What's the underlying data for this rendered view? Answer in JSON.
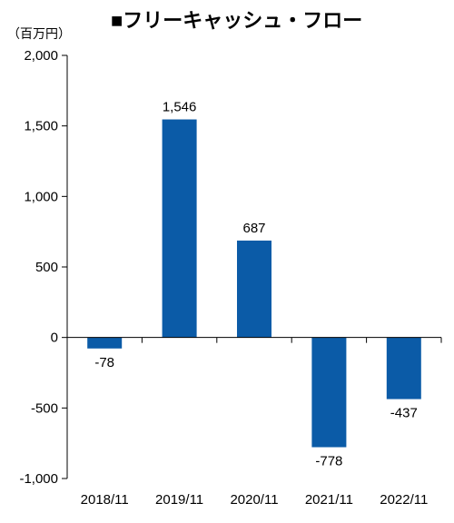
{
  "chart_data": {
    "type": "bar",
    "title": "■フリーキャッシュ・フロー",
    "unit_label": "（百万円）",
    "categories": [
      "2018/11",
      "2019/11",
      "2020/11",
      "2021/11",
      "2022/11"
    ],
    "values": [
      -78,
      1546,
      687,
      -778,
      -437
    ],
    "data_labels": [
      "-78",
      "1,546",
      "687",
      "-778",
      "-437"
    ],
    "yticks": [
      2000,
      1500,
      1000,
      500,
      0,
      -500,
      -1000
    ],
    "ytick_labels": [
      "2,000",
      "1,500",
      "1,000",
      "500",
      "0",
      "-500",
      "-1,000"
    ],
    "ylim": [
      -1000,
      2000
    ],
    "grid": false,
    "colors": {
      "bar": "#0b5ba7",
      "axis": "#000000"
    }
  }
}
